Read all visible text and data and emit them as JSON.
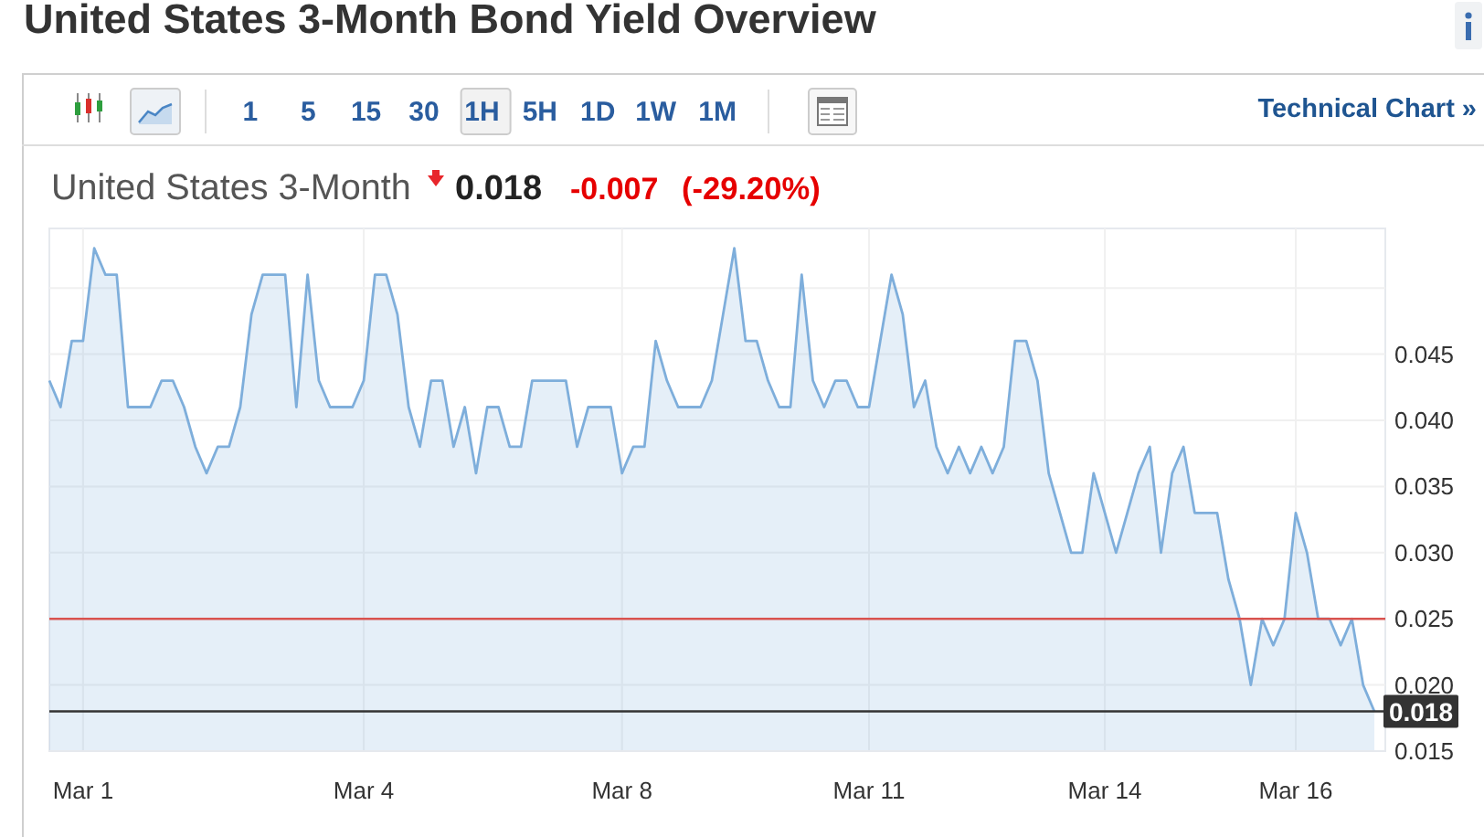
{
  "chart_data": {
    "type": "area",
    "title": "United States 3-Month Bond Yield Overview",
    "subtitle": "United States 3-Month",
    "categories": [
      null,
      null,
      null,
      "Mar 1",
      null,
      null,
      null,
      null,
      null,
      null,
      null,
      null,
      null,
      null,
      null,
      null,
      null,
      null,
      null,
      null,
      null,
      null,
      null,
      null,
      null,
      null,
      null,
      null,
      "Mar 4",
      null,
      null,
      null,
      null,
      null,
      null,
      null,
      null,
      null,
      null,
      null,
      null,
      null,
      null,
      null,
      null,
      null,
      null,
      null,
      null,
      null,
      null,
      "Mar 8",
      null,
      null,
      null,
      null,
      null,
      null,
      null,
      null,
      null,
      null,
      null,
      null,
      null,
      null,
      null,
      null,
      null,
      null,
      null,
      null,
      null,
      "Mar 11",
      null,
      null,
      null,
      null,
      null,
      null,
      null,
      null,
      null,
      null,
      null,
      null,
      null,
      null,
      null,
      null,
      null,
      null,
      null,
      null,
      "Mar 14",
      null,
      null,
      null,
      null,
      null,
      null,
      null,
      null,
      null,
      null,
      null,
      null,
      null,
      null,
      null,
      null,
      "Mar 16",
      null,
      null,
      null,
      null,
      null,
      null,
      null
    ],
    "color": "#7eaedb",
    "values": [
      0.043,
      0.041,
      0.046,
      0.046,
      0.053,
      0.051,
      0.051,
      0.041,
      0.041,
      0.041,
      0.043,
      0.043,
      0.041,
      0.038,
      0.036,
      0.038,
      0.038,
      0.041,
      0.048,
      0.051,
      0.051,
      0.051,
      0.041,
      0.051,
      0.043,
      0.041,
      0.041,
      0.041,
      0.043,
      0.051,
      0.051,
      0.048,
      0.041,
      0.038,
      0.043,
      0.043,
      0.038,
      0.041,
      0.036,
      0.041,
      0.041,
      0.038,
      0.038,
      0.043,
      0.043,
      0.043,
      0.043,
      0.038,
      0.041,
      0.041,
      0.041,
      0.036,
      0.038,
      0.038,
      0.046,
      0.043,
      0.041,
      0.041,
      0.041,
      0.043,
      0.048,
      0.053,
      0.046,
      0.046,
      0.043,
      0.041,
      0.041,
      0.051,
      0.043,
      0.041,
      0.043,
      0.043,
      0.041,
      0.041,
      0.046,
      0.051,
      0.048,
      0.041,
      0.043,
      0.038,
      0.036,
      0.038,
      0.036,
      0.038,
      0.036,
      0.038,
      0.046,
      0.046,
      0.043,
      0.036,
      0.033,
      0.03,
      0.03,
      0.036,
      0.033,
      0.03,
      0.033,
      0.036,
      0.038,
      0.03,
      0.036,
      0.038,
      0.033,
      0.033,
      0.033,
      0.028,
      0.025,
      0.02,
      0.025,
      0.023,
      0.025,
      0.033,
      0.03,
      0.025,
      0.025,
      0.023,
      0.025,
      0.02,
      0.018
    ],
    "ylim": [
      0.015,
      0.0545
    ],
    "yticks": [
      0.015,
      {
        "value": 0.02,
        "label": "0.020"
      },
      0.025,
      {
        "value": 0.03,
        "label": "0.030"
      },
      0.035,
      {
        "value": 0.04,
        "label": "0.040"
      },
      0.045,
      {
        "value": 0.05,
        "label": null
      }
    ],
    "grid": true,
    "ref_lines": [
      {
        "axis": "y",
        "value": 0.025,
        "color": "#d9534f"
      },
      {
        "axis": "y",
        "value": 0.018,
        "label": "0.018",
        "color": "#333333"
      }
    ],
    "annotations": [
      "1 5 15 30 1H 5H 1D 1W 1M",
      "Technical Chart »",
      "0.018",
      "-0.007",
      "(-29.20%)"
    ]
  }
}
